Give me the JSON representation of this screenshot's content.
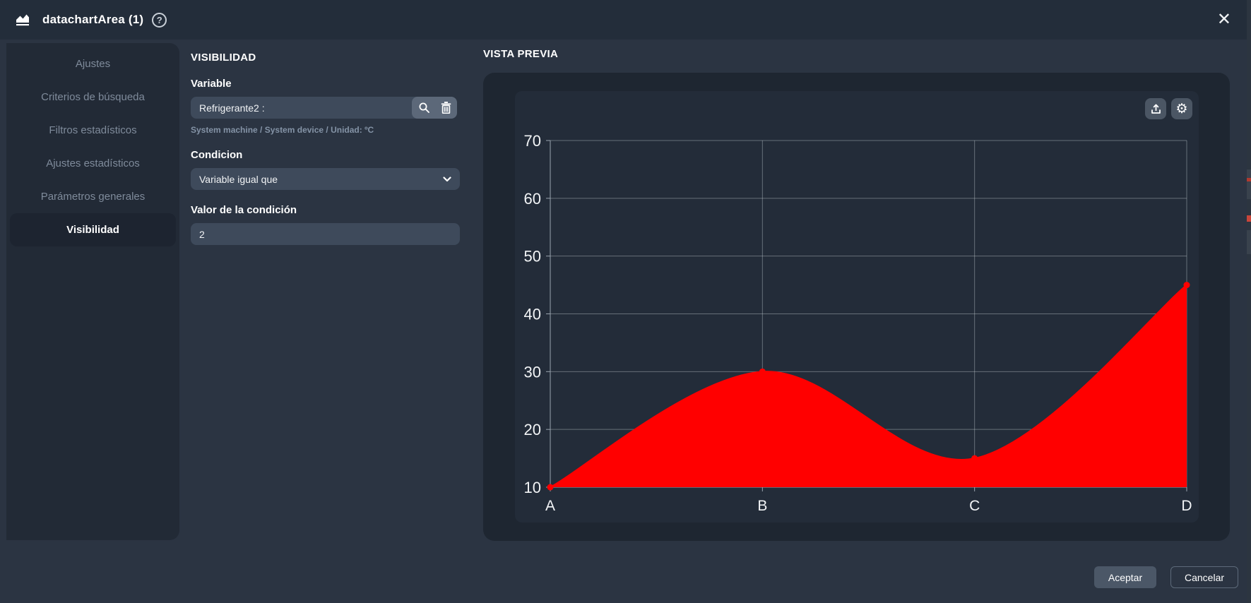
{
  "titlebar": {
    "title": "datachartArea (1)",
    "help_glyph": "?",
    "close_glyph": "✕"
  },
  "sidebar": {
    "items": [
      {
        "label": "Ajustes",
        "selected": false
      },
      {
        "label": "Criterios de búsqueda",
        "selected": false
      },
      {
        "label": "Filtros estadísticos",
        "selected": false
      },
      {
        "label": "Ajustes estadísticos",
        "selected": false
      },
      {
        "label": "Parámetros generales",
        "selected": false
      },
      {
        "label": "Visibilidad",
        "selected": true
      }
    ]
  },
  "form": {
    "section_title": "VISIBILIDAD",
    "variable_label": "Variable",
    "variable_value": "Refrigerante2 :",
    "variable_helper": "System machine / System device / Unidad: ºC",
    "condition_label": "Condicion",
    "condition_selected": "Variable igual que",
    "condition_value_label": "Valor de la condición",
    "condition_value": "2"
  },
  "preview": {
    "section_title": "VISTA PREVIA"
  },
  "footer": {
    "accept_label": "Aceptar",
    "cancel_label": "Cancelar"
  },
  "colors": {
    "series_red": "#ff0000",
    "grid_line": "rgba(214,220,226,0.38)",
    "axis_line": "#9aa4af",
    "tick_label": "#f2f4f6"
  },
  "chart_data": {
    "type": "area",
    "categories": [
      "A",
      "B",
      "C",
      "D"
    ],
    "values": [
      10,
      30,
      15,
      45
    ],
    "title": "",
    "xlabel": "",
    "ylabel": "",
    "ylim": [
      10,
      70
    ],
    "yticks": [
      10,
      20,
      30,
      40,
      50,
      60,
      70
    ],
    "grid": true,
    "smooth": true,
    "series_color": "#ff0000",
    "legend": null
  }
}
